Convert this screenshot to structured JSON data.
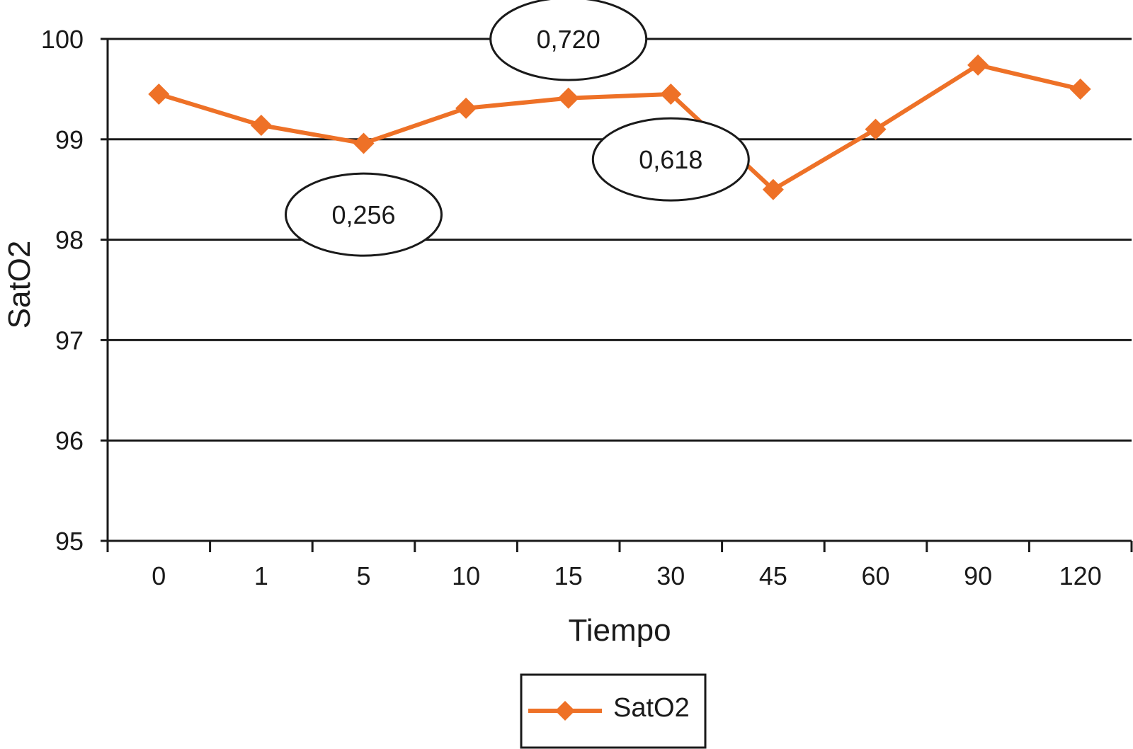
{
  "chart_data": {
    "type": "line",
    "categories": [
      "0",
      "1",
      "5",
      "10",
      "15",
      "30",
      "45",
      "60",
      "90",
      "120"
    ],
    "series": [
      {
        "name": "SatO2",
        "values": [
          99.45,
          99.14,
          98.96,
          99.31,
          99.41,
          99.45,
          98.5,
          99.1,
          99.74,
          99.5
        ],
        "color": "#ee7127",
        "marker": "diamond"
      }
    ],
    "xlabel": "Tiempo",
    "ylabel": "SatO2",
    "ylim": [
      95,
      100
    ],
    "yticks": [
      95,
      96,
      97,
      98,
      99,
      100
    ],
    "grid": true,
    "legend": {
      "position": "bottom-center",
      "label": "SatO2"
    },
    "annotations": [
      {
        "text": "0,720",
        "x": 4.5,
        "y": 100.0
      },
      {
        "text": "0,618",
        "x": 5.5,
        "y": 98.8
      },
      {
        "text": "0,256",
        "x": 2.5,
        "y": 98.25
      }
    ]
  }
}
